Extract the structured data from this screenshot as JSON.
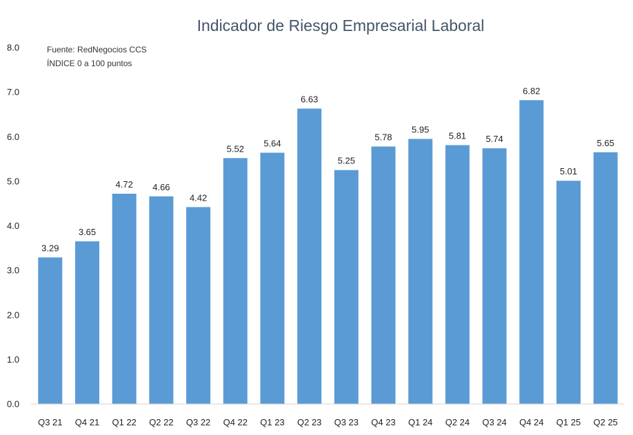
{
  "chart_data": {
    "type": "bar",
    "title": "Indicador de Riesgo Empresarial Laboral",
    "notes": [
      "Fuente: RedNegocios CCS",
      "ÍNDICE 0 a 100  puntos"
    ],
    "categories": [
      "Q3 21",
      "Q4 21",
      "Q1 22",
      "Q2 22",
      "Q3 22",
      "Q4 22",
      "Q1 23",
      "Q2 23",
      "Q3 23",
      "Q4 23",
      "Q1 24",
      "Q2 24",
      "Q3 24",
      "Q4 24",
      "Q1 25",
      "Q2 25"
    ],
    "values": [
      3.29,
      3.65,
      4.72,
      4.66,
      4.42,
      5.52,
      5.64,
      6.63,
      5.25,
      5.78,
      5.95,
      5.81,
      5.74,
      6.82,
      5.01,
      5.65
    ],
    "value_labels": [
      "3.29",
      "3.65",
      "4.72",
      "4.66",
      "4.42",
      "5.52",
      "5.64",
      "6.63",
      "5.25",
      "5.78",
      "5.95",
      "5.81",
      "5.74",
      "6.82",
      "5.01",
      "5.65"
    ],
    "yticks": [
      "0.0",
      "1.0",
      "2.0",
      "3.0",
      "4.0",
      "5.0",
      "6.0",
      "7.0",
      "8.0"
    ],
    "ylim": [
      0,
      8
    ],
    "xlabel": "",
    "ylabel": "",
    "grid": false,
    "bar_color": "#5b9bd5",
    "title_color": "#44546a"
  }
}
